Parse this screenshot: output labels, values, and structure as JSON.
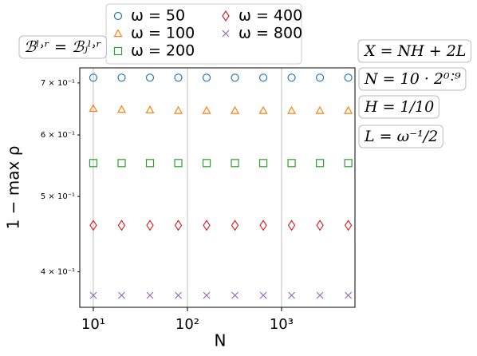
{
  "chart_data": {
    "type": "scatter",
    "x": [
      10,
      20,
      40,
      80,
      160,
      320,
      640,
      1280,
      2560,
      5120
    ],
    "series": [
      {
        "name": "ω = 50",
        "color": "#1f77b4",
        "marker": "circle",
        "values": [
          0.711,
          0.711,
          0.711,
          0.711,
          0.711,
          0.711,
          0.711,
          0.711,
          0.711,
          0.711
        ]
      },
      {
        "name": "ω = 100",
        "color": "#ff7f0e",
        "marker": "triangle",
        "values": [
          0.649,
          0.647,
          0.646,
          0.645,
          0.645,
          0.645,
          0.645,
          0.645,
          0.645,
          0.645
        ]
      },
      {
        "name": "ω = 200",
        "color": "#2ca02c",
        "marker": "square",
        "values": [
          0.552,
          0.552,
          0.552,
          0.552,
          0.552,
          0.552,
          0.552,
          0.552,
          0.552,
          0.552
        ]
      },
      {
        "name": "ω = 400",
        "color": "#d62728",
        "marker": "diamond",
        "values": [
          0.459,
          0.459,
          0.459,
          0.459,
          0.459,
          0.459,
          0.459,
          0.459,
          0.459,
          0.459
        ]
      },
      {
        "name": "ω = 800",
        "color": "#9467bd",
        "marker": "x",
        "values": [
          0.373,
          0.373,
          0.373,
          0.373,
          0.373,
          0.373,
          0.373,
          0.373,
          0.373,
          0.373
        ]
      }
    ],
    "x_label": "N",
    "y_label": "1 − max ρ",
    "xscale": "log",
    "yscale": "log",
    "xlim": [
      7.18,
      6030
    ],
    "ylim": [
      0.36,
      0.732
    ],
    "xticks": [
      {
        "value": 10,
        "label": "10¹"
      },
      {
        "value": 100,
        "label": "10²"
      },
      {
        "value": 1000,
        "label": "10³"
      }
    ],
    "yticks": [
      {
        "value": 0.4,
        "label": "4 × 10⁻¹"
      },
      {
        "value": 0.5,
        "label": "5 × 10⁻¹"
      },
      {
        "value": 0.6,
        "label": "6 × 10⁻¹"
      },
      {
        "value": 0.7,
        "label": "7 × 10⁻¹"
      }
    ],
    "grid": "x",
    "annotations": [
      "ℬˡ˒ʳ = ℬⱼˡ˒ʳ",
      "X = NH + 2L",
      "N = 10 · 2⁰˸⁹",
      "H = 1/10",
      "L = ω⁻¹/2"
    ]
  }
}
